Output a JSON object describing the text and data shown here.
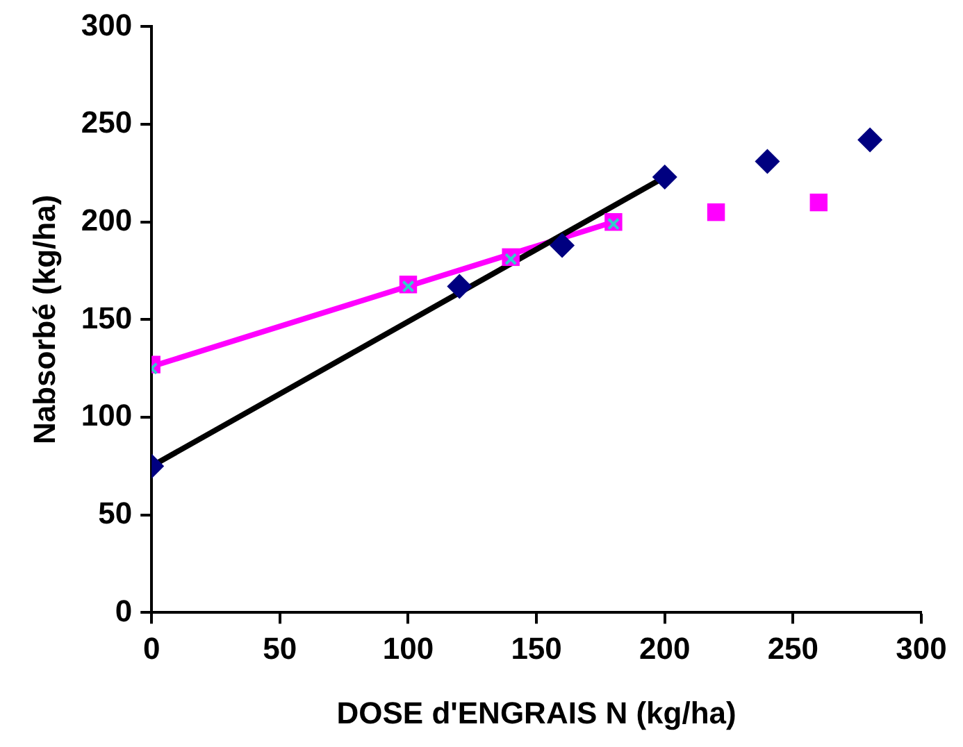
{
  "chart_data": {
    "type": "scatter",
    "xlabel": "DOSE d'ENGRAIS N (kg/ha)",
    "ylabel": "Nabsorbé (kg/ha)",
    "xlim": [
      0,
      300
    ],
    "xticks": [
      0,
      50,
      100,
      150,
      200,
      250,
      300
    ],
    "ylim": [
      0,
      300
    ],
    "yticks": [
      0,
      50,
      100,
      150,
      200,
      250,
      300
    ],
    "grid": false,
    "legend": false,
    "series": [
      {
        "type": "line",
        "color": "#000000",
        "marker": "none",
        "x": [
          0,
          200
        ],
        "values": [
          75,
          223
        ]
      },
      {
        "type": "line",
        "color": "#ff00ff",
        "marker": "none",
        "x": [
          0,
          180
        ],
        "values": [
          126,
          200
        ]
      },
      {
        "color": "#000080",
        "marker": "diamond",
        "x": [
          0,
          120,
          160,
          200,
          240,
          280
        ],
        "values": [
          75,
          167,
          188,
          223,
          231,
          242
        ]
      },
      {
        "color": "#ff00ff",
        "marker": "square",
        "x": [
          0,
          100,
          140,
          180,
          220,
          260
        ],
        "values": [
          127,
          168,
          182,
          200,
          205,
          210
        ]
      },
      {
        "color": "#33cccc",
        "marker": "cross",
        "x": [
          0,
          100,
          140,
          180
        ],
        "values": [
          125,
          167,
          181,
          199
        ]
      }
    ]
  }
}
